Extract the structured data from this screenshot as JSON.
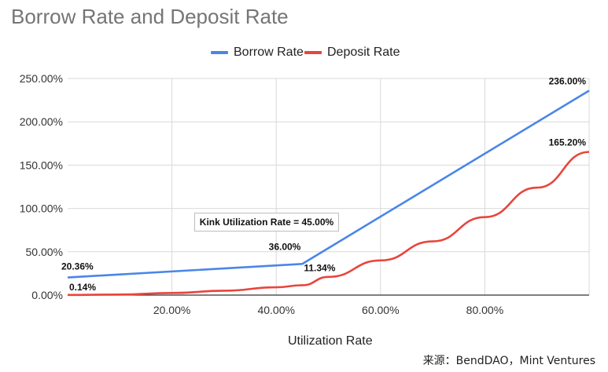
{
  "chart_data": {
    "type": "line",
    "title": "Borrow Rate and Deposit Rate",
    "xlabel": "Utilization Rate",
    "ylabel": "",
    "xlim": [
      0.0,
      1.0
    ],
    "ylim": [
      0,
      2.5
    ],
    "x_ticks": [
      {
        "value": 0.2,
        "label": "20.00%"
      },
      {
        "value": 0.4,
        "label": "40.00%"
      },
      {
        "value": 0.6,
        "label": "60.00%"
      },
      {
        "value": 0.8,
        "label": "80.00%"
      }
    ],
    "y_ticks": [
      {
        "value": 0,
        "label": "0.00%"
      },
      {
        "value": 0.5,
        "label": "50.00%"
      },
      {
        "value": 1.0,
        "label": "100.00%"
      },
      {
        "value": 1.5,
        "label": "150.00%"
      },
      {
        "value": 2.0,
        "label": "200.00%"
      },
      {
        "value": 2.5,
        "label": "250.00%"
      }
    ],
    "grid": true,
    "legend_position": "top-center",
    "series": [
      {
        "name": "Borrow Rate",
        "color": "#4a86e8",
        "points": [
          [
            0.0,
            0.2036
          ],
          [
            0.45,
            0.36
          ],
          [
            1.0,
            2.36
          ]
        ]
      },
      {
        "name": "Deposit Rate",
        "color": "#e8453c",
        "points": [
          [
            0.0,
            0.0014
          ],
          [
            0.1,
            0.006
          ],
          [
            0.2,
            0.024
          ],
          [
            0.3,
            0.05
          ],
          [
            0.4,
            0.09
          ],
          [
            0.45,
            0.1134
          ],
          [
            0.5,
            0.21
          ],
          [
            0.6,
            0.4
          ],
          [
            0.7,
            0.62
          ],
          [
            0.8,
            0.9
          ],
          [
            0.9,
            1.24
          ],
          [
            1.0,
            1.652
          ]
        ]
      }
    ],
    "data_labels": [
      {
        "series": 0,
        "x": 0.0,
        "y": 0.2036,
        "text": "20.36%"
      },
      {
        "series": 0,
        "x": 0.45,
        "y": 0.36,
        "text": "36.00%"
      },
      {
        "series": 0,
        "x": 1.0,
        "y": 2.36,
        "text": "236.00%"
      },
      {
        "series": 1,
        "x": 0.0,
        "y": 0.0014,
        "text": "0.14%"
      },
      {
        "series": 1,
        "x": 0.45,
        "y": 0.1134,
        "text": "11.34%"
      },
      {
        "series": 1,
        "x": 1.0,
        "y": 1.652,
        "text": "165.20%"
      }
    ],
    "annotation": "Kink Utilization Rate = 45.00%"
  },
  "source_note": "来源：BendDAO，Mint Ventures"
}
